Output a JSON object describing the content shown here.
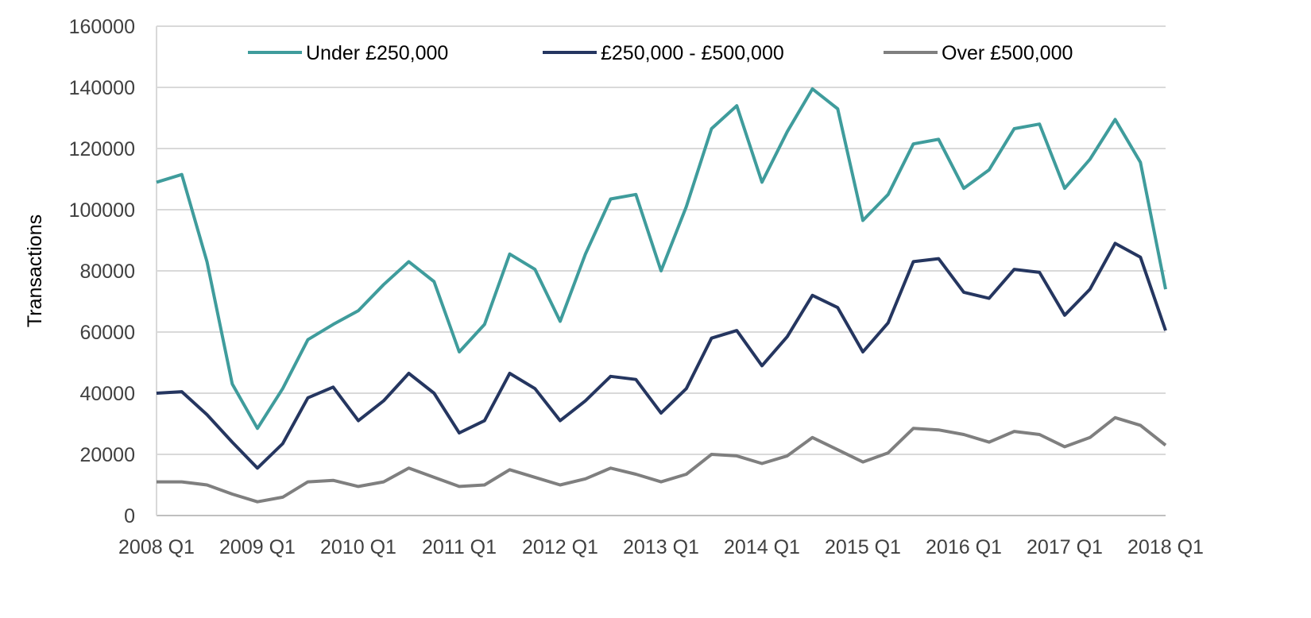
{
  "chart_data": {
    "type": "line",
    "title": "",
    "xlabel": "",
    "ylabel": "Transactions",
    "ylim": [
      0,
      160000
    ],
    "yticks": [
      0,
      20000,
      40000,
      60000,
      80000,
      100000,
      120000,
      140000,
      160000
    ],
    "ytick_labels": [
      "0",
      "20000",
      "40000",
      "60000",
      "80000",
      "100000",
      "120000",
      "140000",
      "160000"
    ],
    "xtick_labels": [
      "2008 Q1",
      "2009 Q1",
      "2010 Q1",
      "2011 Q1",
      "2012 Q1",
      "2013 Q1",
      "2014 Q1",
      "2015 Q1",
      "2016 Q1",
      "2017 Q1",
      "2018 Q1"
    ],
    "x_start": "2008 Q1",
    "quarters": 41,
    "grid": true,
    "legend_position": "top",
    "series": [
      {
        "name": "Under £250,000",
        "color": "#3f9c9c",
        "values": [
          109000,
          111500,
          83000,
          43000,
          28500,
          41500,
          57500,
          62500,
          67000,
          75500,
          83000,
          76500,
          53500,
          62500,
          85500,
          80500,
          63500,
          85500,
          103500,
          105000,
          80000,
          101000,
          126500,
          134000,
          109000,
          125500,
          139500,
          133000,
          96500,
          105000,
          121500,
          123000,
          107000,
          113000,
          126500,
          128000,
          107000,
          116500,
          129500,
          115500,
          74000
        ]
      },
      {
        "name": "£250,000 - £500,000",
        "color": "#253660",
        "values": [
          40000,
          40500,
          33000,
          24000,
          15500,
          23500,
          38500,
          42000,
          31000,
          37500,
          46500,
          40000,
          27000,
          31000,
          46500,
          41500,
          31000,
          37500,
          45500,
          44500,
          33500,
          41500,
          58000,
          60500,
          49000,
          58500,
          72000,
          68000,
          53500,
          63000,
          83000,
          84000,
          73000,
          71000,
          80500,
          79500,
          65500,
          74000,
          89000,
          84500,
          60500
        ]
      },
      {
        "name": "Over £500,000",
        "color": "#7f7f7f",
        "values": [
          11000,
          11000,
          10000,
          7000,
          4500,
          6000,
          11000,
          11500,
          9500,
          11000,
          15500,
          12500,
          9500,
          10000,
          15000,
          12500,
          10000,
          12000,
          15500,
          13500,
          11000,
          13500,
          20000,
          19500,
          17000,
          19500,
          25500,
          21500,
          17500,
          20500,
          28500,
          28000,
          26500,
          24000,
          27500,
          26500,
          22500,
          25500,
          32000,
          29500,
          23000
        ]
      }
    ]
  }
}
